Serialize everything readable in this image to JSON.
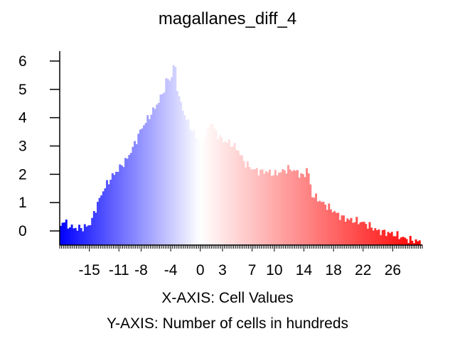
{
  "chart_data": {
    "type": "bar",
    "title": "magallanes_diff_4",
    "xlabel": "X-AXIS: Cell Values",
    "ylabel": "Y-AXIS: Number of cells in hundreds",
    "xlim": [
      -19,
      30
    ],
    "ylim": [
      -0.5,
      6.5
    ],
    "x_ticks": [
      "-15",
      "-11",
      "-8",
      "-4",
      "0",
      "3",
      "7",
      "10",
      "14",
      "18",
      "22",
      "26"
    ],
    "y_ticks": [
      "0",
      "1",
      "2",
      "3",
      "4",
      "5",
      "6"
    ],
    "color_scale": {
      "low": "#0000ff",
      "mid": "#ffffff",
      "high": "#ff0000"
    },
    "bin_width": 0.25,
    "profile": {
      "x": [
        -19,
        -18.5,
        -18,
        -17,
        -16,
        -15,
        -14.5,
        -14,
        -13,
        -12,
        -11,
        -10,
        -9,
        -8,
        -7,
        -6,
        -5,
        -4.5,
        -4,
        -3.5,
        -3,
        -2,
        -1,
        0,
        1,
        1.5,
        2,
        3,
        4,
        5,
        6,
        7,
        8,
        9,
        10,
        11,
        12,
        13,
        14,
        14.5,
        15,
        16,
        17,
        18,
        19,
        20,
        22,
        24,
        26,
        28,
        30
      ],
      "y": [
        0.1,
        0.4,
        0.2,
        0.1,
        0.1,
        0.2,
        0.5,
        0.9,
        1.5,
        1.9,
        2.2,
        2.5,
        3.0,
        3.6,
        4.0,
        4.4,
        4.9,
        5.4,
        5.3,
        6.0,
        4.8,
        4.0,
        3.5,
        3.1,
        3.6,
        3.9,
        3.5,
        3.2,
        3.1,
        2.9,
        2.4,
        2.2,
        2.1,
        2.1,
        2.0,
        2.1,
        2.2,
        2.1,
        1.9,
        2.3,
        1.3,
        1.1,
        0.9,
        0.7,
        0.5,
        0.4,
        0.3,
        0.0,
        -0.1,
        -0.3,
        -0.4
      ]
    }
  }
}
